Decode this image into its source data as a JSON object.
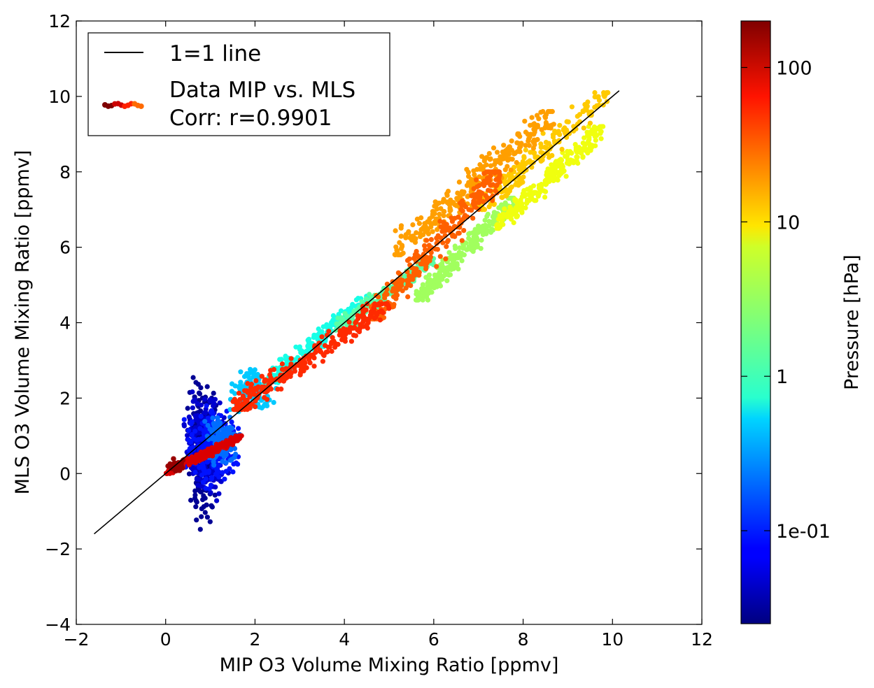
{
  "chart_data": {
    "type": "scatter",
    "title": "",
    "xlabel": "MIP O3 Volume Mixing Ratio [ppmv]",
    "ylabel": "MLS O3 Volume Mixing Ratio [ppmv]",
    "xlim": [
      -2,
      12
    ],
    "ylim": [
      -4,
      12
    ],
    "xticks": [
      -2,
      0,
      2,
      4,
      6,
      8,
      10,
      12
    ],
    "yticks": [
      -4,
      -2,
      0,
      2,
      4,
      6,
      8,
      10,
      12
    ],
    "xtick_labels": [
      "−2",
      "0",
      "2",
      "4",
      "6",
      "8",
      "10",
      "12"
    ],
    "ytick_labels": [
      "−4",
      "−2",
      "0",
      "2",
      "4",
      "6",
      "8",
      "10",
      "12"
    ],
    "grid": false,
    "legend": {
      "placement": "upper-left",
      "entries": [
        {
          "label": "1=1 line",
          "kind": "line",
          "color": "#000000"
        },
        {
          "label_lines": [
            "Data MIP vs. MLS",
            "Corr: r=0.9901"
          ],
          "kind": "scatter",
          "colors": [
            "#7f0000",
            "#cc0000",
            "#ff2200",
            "#ff6a00"
          ]
        }
      ]
    },
    "colorbar": {
      "label": "Pressure [hPa]",
      "scale": "log",
      "range_hPa": [
        0.025,
        200
      ],
      "tick_values": [
        100,
        10,
        1,
        0.1
      ],
      "tick_labels": [
        "100",
        "10",
        "1",
        "1e-01"
      ],
      "colormap": "jet"
    },
    "reference_line": {
      "name": "1=1 line",
      "x": [
        -1.6,
        10.15
      ],
      "y": [
        -1.6,
        10.15
      ]
    },
    "correlation_r": 0.9901,
    "clusters": [
      {
        "pressure_hPa": 0.03,
        "x_range": [
          0.4,
          1.2
        ],
        "y_range": [
          -1.6,
          3.0
        ],
        "count": 260
      },
      {
        "pressure_hPa": 0.05,
        "x_range": [
          0.3,
          1.5
        ],
        "y_range": [
          -1.0,
          2.4
        ],
        "count": 280
      },
      {
        "pressure_hPa": 0.09,
        "x_range": [
          0.3,
          1.75
        ],
        "y_range": [
          -0.6,
          2.0
        ],
        "count": 260
      },
      {
        "pressure_hPa": 0.2,
        "x_range": [
          0.8,
          1.75
        ],
        "y_range": [
          0.0,
          1.7
        ],
        "count": 160
      },
      {
        "pressure_hPa": 0.45,
        "x_range": [
          1.3,
          2.6
        ],
        "y_range": [
          1.5,
          2.9
        ],
        "count": 140
      },
      {
        "pressure_hPa": 0.9,
        "x_range": [
          2.2,
          4.6
        ],
        "y_range": [
          2.4,
          4.7
        ],
        "count": 200
      },
      {
        "pressure_hPa": 1.6,
        "x_range": [
          3.8,
          6.0
        ],
        "y_range": [
          3.8,
          5.7
        ],
        "count": 190
      },
      {
        "pressure_hPa": 3.0,
        "x_range": [
          5.6,
          7.8
        ],
        "y_range": [
          4.6,
          7.3
        ],
        "count": 260
      },
      {
        "pressure_hPa": 6.0,
        "x_range": [
          7.4,
          9.8
        ],
        "y_range": [
          6.5,
          9.2
        ],
        "count": 240
      },
      {
        "pressure_hPa": 11,
        "x_range": [
          7.0,
          9.9
        ],
        "y_range": [
          7.0,
          10.1
        ],
        "count": 200
      },
      {
        "pressure_hPa": 16,
        "x_range": [
          5.1,
          8.7
        ],
        "y_range": [
          5.8,
          9.6
        ],
        "count": 300
      },
      {
        "pressure_hPa": 28,
        "x_range": [
          4.6,
          7.5
        ],
        "y_range": [
          4.1,
          8.0
        ],
        "count": 260
      },
      {
        "pressure_hPa": 45,
        "x_range": [
          1.5,
          5.0
        ],
        "y_range": [
          1.7,
          4.5
        ],
        "count": 260
      },
      {
        "pressure_hPa": 90,
        "x_range": [
          0.0,
          1.7
        ],
        "y_range": [
          0.0,
          1.0
        ],
        "count": 220
      },
      {
        "pressure_hPa": 160,
        "x_range": [
          0.0,
          0.5
        ],
        "y_range": [
          0.0,
          0.4
        ],
        "count": 60
      }
    ]
  }
}
